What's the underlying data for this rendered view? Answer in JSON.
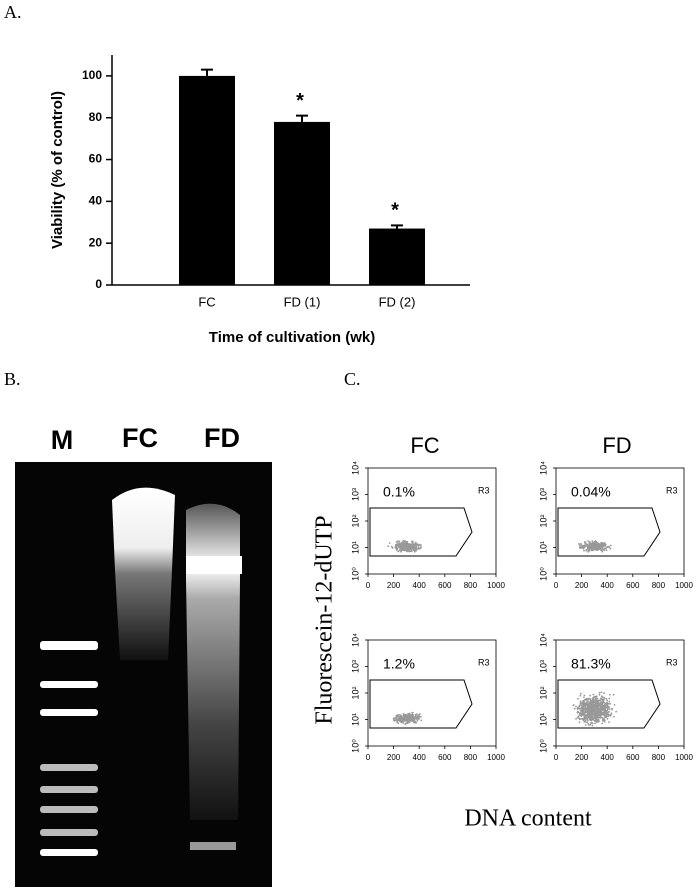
{
  "chart_data": {
    "type": "bar",
    "panel_label": "A.",
    "categories": [
      "FC",
      "FD (1)",
      "FD (2)"
    ],
    "values": [
      100,
      78,
      27
    ],
    "errors": [
      3,
      3,
      1.5
    ],
    "annotations": [
      null,
      "*",
      "*"
    ],
    "color": "#000000",
    "ylabel": "Viability (% of control)",
    "xlabel": "Time of cultivation (wk)",
    "ylim": [
      0,
      110
    ],
    "yticks": [
      0,
      20,
      40,
      60,
      80,
      100
    ]
  },
  "gel": {
    "panel_label": "B.",
    "lanes": [
      "M",
      "FC",
      "FD"
    ]
  },
  "flow": {
    "panel_label": "C.",
    "columns": [
      "FC",
      "FD"
    ],
    "ylabel": "Fluorescein-12-dUTP",
    "xlabel": "DNA content",
    "gate": "R3",
    "plots": [
      {
        "percent": "0.1%"
      },
      {
        "percent": "0.04%"
      },
      {
        "percent": "1.2%"
      },
      {
        "percent": "81.3%"
      }
    ],
    "xlim": [
      0,
      1000
    ],
    "xticks": [
      0,
      200,
      400,
      600,
      800,
      1000
    ],
    "ylim": [
      1,
      10000
    ],
    "log_y": true,
    "yticks": [
      {
        "value": 1,
        "label": "10⁰"
      },
      {
        "value": 10,
        "label": "10¹"
      },
      {
        "value": 100,
        "label": "10²"
      },
      {
        "value": 1000,
        "label": "10³"
      },
      {
        "value": 10000,
        "label": "10⁴"
      }
    ]
  }
}
